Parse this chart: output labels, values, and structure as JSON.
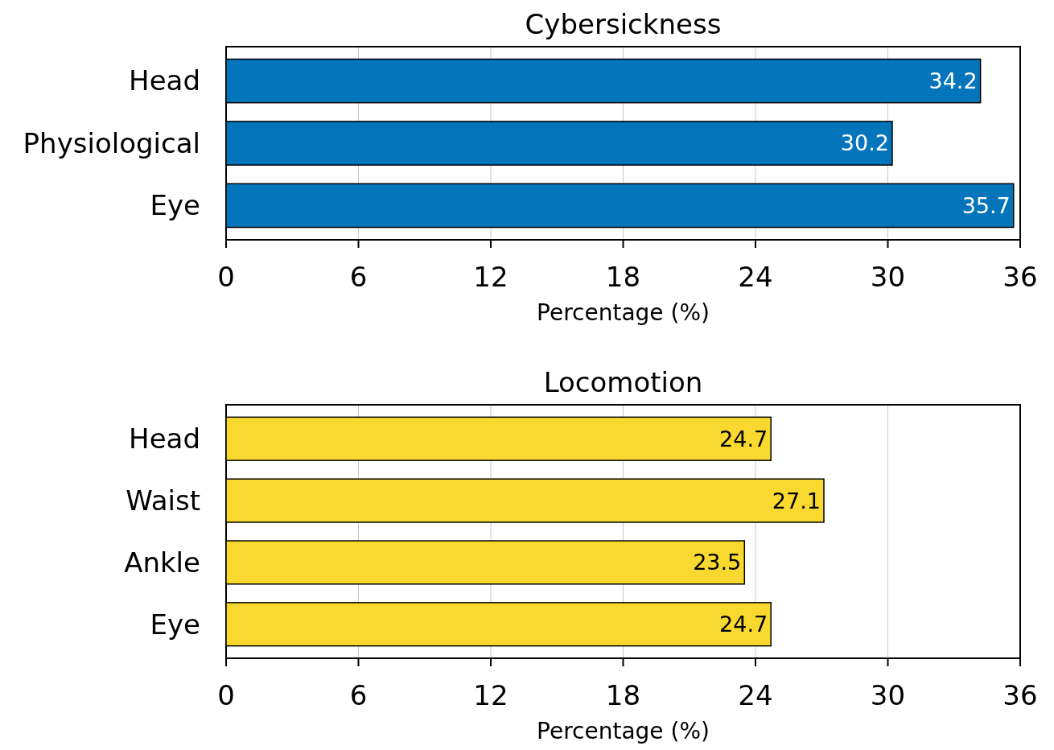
{
  "chart_data": [
    {
      "type": "bar",
      "title": "Cybersickness",
      "orientation": "horizontal",
      "categories": [
        "Head",
        "Physiological",
        "Eye"
      ],
      "values": [
        34.2,
        30.2,
        35.7
      ],
      "color": "#0474bb",
      "xlim": [
        0,
        36
      ],
      "xticks": [
        0,
        6,
        12,
        18,
        24,
        30,
        36
      ],
      "xlabel": "Percentage (%)",
      "grid": "x",
      "data_labels": true
    },
    {
      "type": "bar",
      "title": "Locomotion",
      "orientation": "horizontal",
      "categories": [
        "Head",
        "Waist",
        "Ankle",
        "Eye"
      ],
      "values": [
        24.7,
        27.1,
        23.5,
        24.7
      ],
      "color": "#f9d92f",
      "xlim": [
        0,
        36
      ],
      "xticks": [
        0,
        6,
        12,
        18,
        24,
        30,
        36
      ],
      "xlabel": "Percentage (%)",
      "grid": "x",
      "data_labels": true
    }
  ]
}
